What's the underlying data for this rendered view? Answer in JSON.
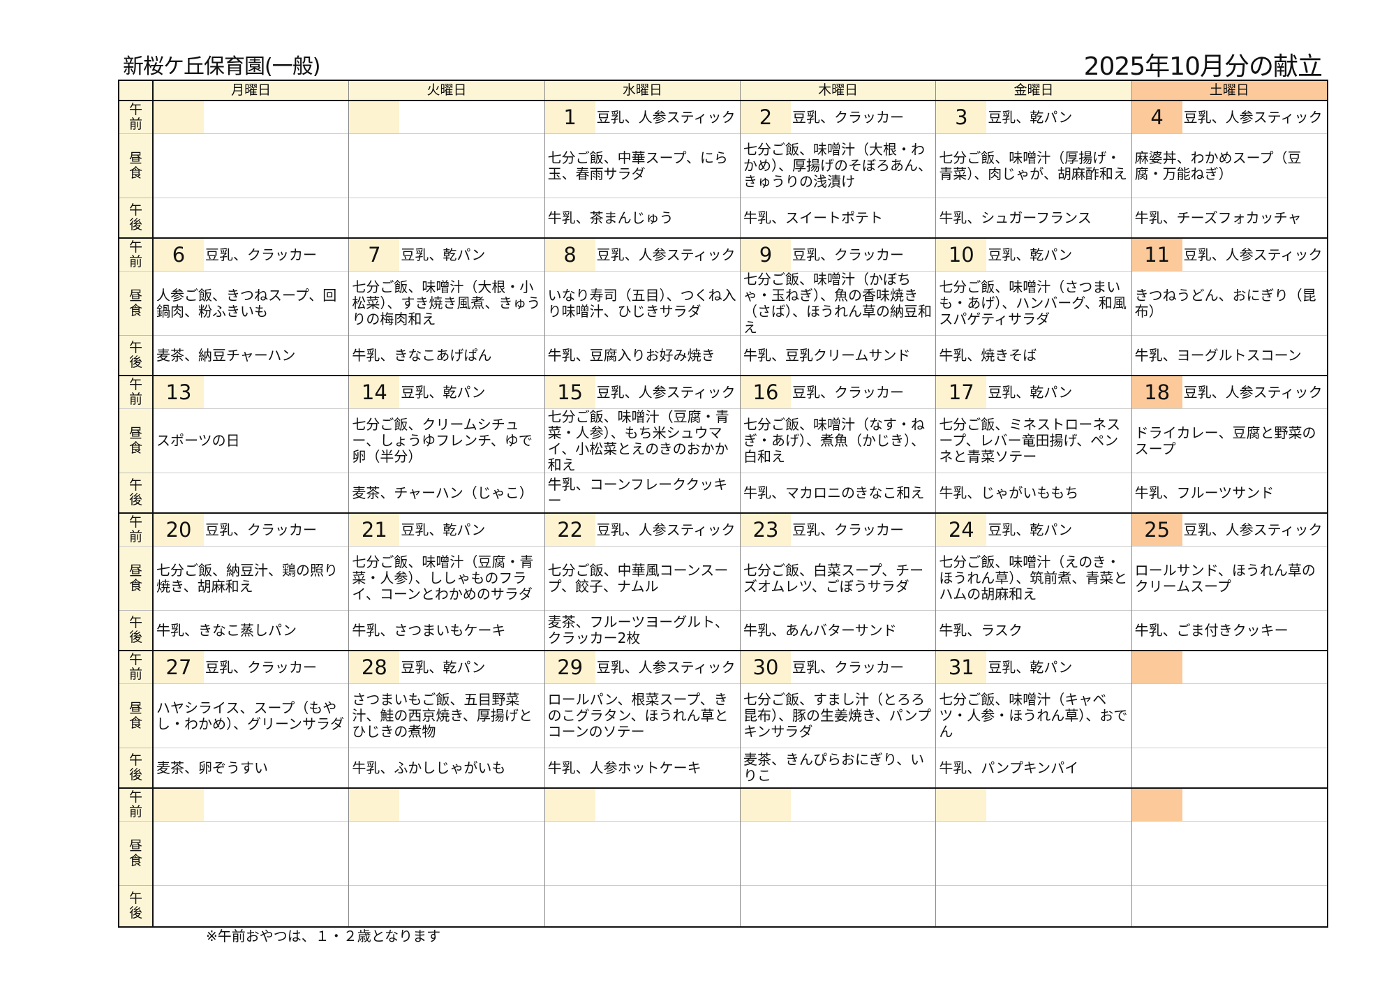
{
  "header": {
    "school": "新桜ケ丘保育園(一般)",
    "title": "2025年10月分の献立"
  },
  "weekdays": [
    "月曜日",
    "火曜日",
    "水曜日",
    "木曜日",
    "金曜日",
    "土曜日"
  ],
  "row_labels": {
    "am": [
      "午",
      "前"
    ],
    "lunch": [
      "昼",
      "食"
    ],
    "pm": [
      "午",
      "後"
    ]
  },
  "colors": {
    "header_bg": "#fdf6d6",
    "date_bg": "#fdf3d0",
    "saturday_bg": "#fbc99a"
  },
  "weeks": [
    [
      {
        "date": "",
        "am": "",
        "lunch": "",
        "pm": ""
      },
      {
        "date": "",
        "am": "",
        "lunch": "",
        "pm": ""
      },
      {
        "date": "1",
        "am": "豆乳、人参スティック",
        "lunch": "七分ご飯、中華スープ、にら玉、春雨サラダ",
        "pm": "牛乳、茶まんじゅう"
      },
      {
        "date": "2",
        "am": "豆乳、クラッカー",
        "lunch": "七分ご飯、味噌汁（大根・わかめ）、厚揚げのそぼろあん、きゅうりの浅漬け",
        "pm": "牛乳、スイートポテト"
      },
      {
        "date": "3",
        "am": "豆乳、乾パン",
        "lunch": "七分ご飯、味噌汁（厚揚げ・青菜）、肉じゃが、胡麻酢和え",
        "pm": "牛乳、シュガーフランス"
      },
      {
        "date": "4",
        "am": "豆乳、人参スティック",
        "lunch": "麻婆丼、わかめスープ（豆腐・万能ねぎ）",
        "pm": "牛乳、チーズフォカッチャ"
      }
    ],
    [
      {
        "date": "6",
        "am": "豆乳、クラッカー",
        "lunch": "人参ご飯、きつねスープ、回鍋肉、粉ふきいも",
        "pm": "麦茶、納豆チャーハン"
      },
      {
        "date": "7",
        "am": "豆乳、乾パン",
        "lunch": "七分ご飯、味噌汁（大根・小松菜）、すき焼き風煮、きゅうりの梅肉和え",
        "pm": "牛乳、きなこあげぱん"
      },
      {
        "date": "8",
        "am": "豆乳、人参スティック",
        "lunch": "いなり寿司（五目）、つくね入り味噌汁、ひじきサラダ",
        "pm": "牛乳、豆腐入りお好み焼き"
      },
      {
        "date": "9",
        "am": "豆乳、クラッカー",
        "lunch": "七分ご飯、味噌汁（かぼちゃ・玉ねぎ）、魚の香味焼き（さば）、ほうれん草の納豆和え",
        "pm": "牛乳、豆乳クリームサンド"
      },
      {
        "date": "10",
        "am": "豆乳、乾パン",
        "lunch": "七分ご飯、味噌汁（さつまいも・あげ）、ハンバーグ、和風スパゲティサラダ",
        "pm": "牛乳、焼きそば"
      },
      {
        "date": "11",
        "am": "豆乳、人参スティック",
        "lunch": "きつねうどん、おにぎり（昆布）",
        "pm": "牛乳、ヨーグルトスコーン"
      }
    ],
    [
      {
        "date": "13",
        "am": "",
        "lunch": "スポーツの日",
        "pm": ""
      },
      {
        "date": "14",
        "am": "豆乳、乾パン",
        "lunch": "七分ご飯、クリームシチュー、しょうゆフレンチ、ゆで卵（半分）",
        "pm": "麦茶、チャーハン（じゃこ）"
      },
      {
        "date": "15",
        "am": "豆乳、人参スティック",
        "lunch": "七分ご飯、味噌汁（豆腐・青菜・人参）、もち米シュウマイ、小松菜とえのきのおかか和え",
        "pm": "牛乳、コーンフレーククッキー"
      },
      {
        "date": "16",
        "am": "豆乳、クラッカー",
        "lunch": "七分ご飯、味噌汁（なす・ねぎ・あげ）、煮魚（かじき）、白和え",
        "pm": "牛乳、マカロニのきなこ和え"
      },
      {
        "date": "17",
        "am": "豆乳、乾パン",
        "lunch": "七分ご飯、ミネストローネスープ、レバー竜田揚げ、ペンネと青菜ソテー",
        "pm": "牛乳、じゃがいももち"
      },
      {
        "date": "18",
        "am": "豆乳、人参スティック",
        "lunch": "ドライカレー、豆腐と野菜のスープ",
        "pm": "牛乳、フルーツサンド"
      }
    ],
    [
      {
        "date": "20",
        "am": "豆乳、クラッカー",
        "lunch": "七分ご飯、納豆汁、鶏の照り焼き、胡麻和え",
        "pm": "牛乳、きなこ蒸しパン"
      },
      {
        "date": "21",
        "am": "豆乳、乾パン",
        "lunch": "七分ご飯、味噌汁（豆腐・青菜・人参）、ししゃものフライ、コーンとわかめのサラダ",
        "pm": "牛乳、さつまいもケーキ"
      },
      {
        "date": "22",
        "am": "豆乳、人参スティック",
        "lunch": "七分ご飯、中華風コーンスープ、餃子、ナムル",
        "pm": "麦茶、フルーツヨーグルト、クラッカー2枚"
      },
      {
        "date": "23",
        "am": "豆乳、クラッカー",
        "lunch": "七分ご飯、白菜スープ、チーズオムレツ、ごぼうサラダ",
        "pm": "牛乳、あんバターサンド"
      },
      {
        "date": "24",
        "am": "豆乳、乾パン",
        "lunch": "七分ご飯、味噌汁（えのき・ほうれん草）、筑前煮、青菜とハムの胡麻和え",
        "pm": "牛乳、ラスク"
      },
      {
        "date": "25",
        "am": "豆乳、人参スティック",
        "lunch": "ロールサンド、ほうれん草のクリームスープ",
        "pm": "牛乳、ごま付きクッキー"
      }
    ],
    [
      {
        "date": "27",
        "am": "豆乳、クラッカー",
        "lunch": "ハヤシライス、スープ（もやし・わかめ）、グリーンサラダ",
        "pm": "麦茶、卵ぞうすい"
      },
      {
        "date": "28",
        "am": "豆乳、乾パン",
        "lunch": "さつまいもご飯、五目野菜汁、鮭の西京焼き、厚揚げとひじきの煮物",
        "pm": "牛乳、ふかしじゃがいも"
      },
      {
        "date": "29",
        "am": "豆乳、人参スティック",
        "lunch": "ロールパン、根菜スープ、きのこグラタン、ほうれん草とコーンのソテー",
        "pm": "牛乳、人参ホットケーキ"
      },
      {
        "date": "30",
        "am": "豆乳、クラッカー",
        "lunch": "七分ご飯、すまし汁（とろろ昆布）、豚の生姜焼き、パンプキンサラダ",
        "pm": "麦茶、きんぴらおにぎり、いりこ"
      },
      {
        "date": "31",
        "am": "豆乳、乾パン",
        "lunch": "七分ご飯、味噌汁（キャベツ・人参・ほうれん草）、おでん",
        "pm": "牛乳、パンプキンパイ"
      },
      {
        "date": "",
        "am": "",
        "lunch": "",
        "pm": ""
      }
    ],
    [
      {
        "date": "",
        "am": "",
        "lunch": "",
        "pm": ""
      },
      {
        "date": "",
        "am": "",
        "lunch": "",
        "pm": ""
      },
      {
        "date": "",
        "am": "",
        "lunch": "",
        "pm": ""
      },
      {
        "date": "",
        "am": "",
        "lunch": "",
        "pm": ""
      },
      {
        "date": "",
        "am": "",
        "lunch": "",
        "pm": ""
      },
      {
        "date": "",
        "am": "",
        "lunch": "",
        "pm": ""
      }
    ]
  ],
  "footnote": "※午前おやつは、１・２歳となります"
}
